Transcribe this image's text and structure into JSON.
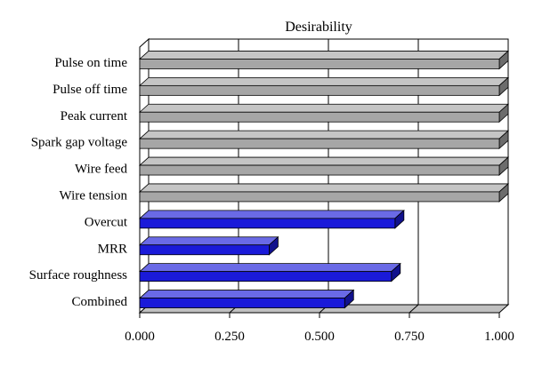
{
  "chart_data": {
    "type": "bar",
    "orientation": "horizontal",
    "title": "Desirability",
    "xlabel": "",
    "ylabel": "",
    "xlim": [
      0,
      1
    ],
    "xticks": [
      "0.000",
      "0.250",
      "0.500",
      "0.750",
      "1.000"
    ],
    "xtick_values": [
      0,
      0.25,
      0.5,
      0.75,
      1.0
    ],
    "categories": [
      "Pulse on time",
      "Pulse off time",
      "Peak current",
      "Spark gap voltage",
      "Wire feed",
      "Wire tension",
      "Overcut",
      "MRR",
      "Surface roughness",
      "Combined"
    ],
    "values": [
      1.0,
      1.0,
      1.0,
      1.0,
      1.0,
      1.0,
      0.71,
      0.36,
      0.7,
      0.57
    ],
    "bar_colors": [
      "#a6a6a6",
      "#a6a6a6",
      "#a6a6a6",
      "#a6a6a6",
      "#a6a6a6",
      "#a6a6a6",
      "#1a1ad9",
      "#1a1ad9",
      "#1a1ad9",
      "#1a1ad9"
    ],
    "grid": true,
    "style": "3d"
  }
}
